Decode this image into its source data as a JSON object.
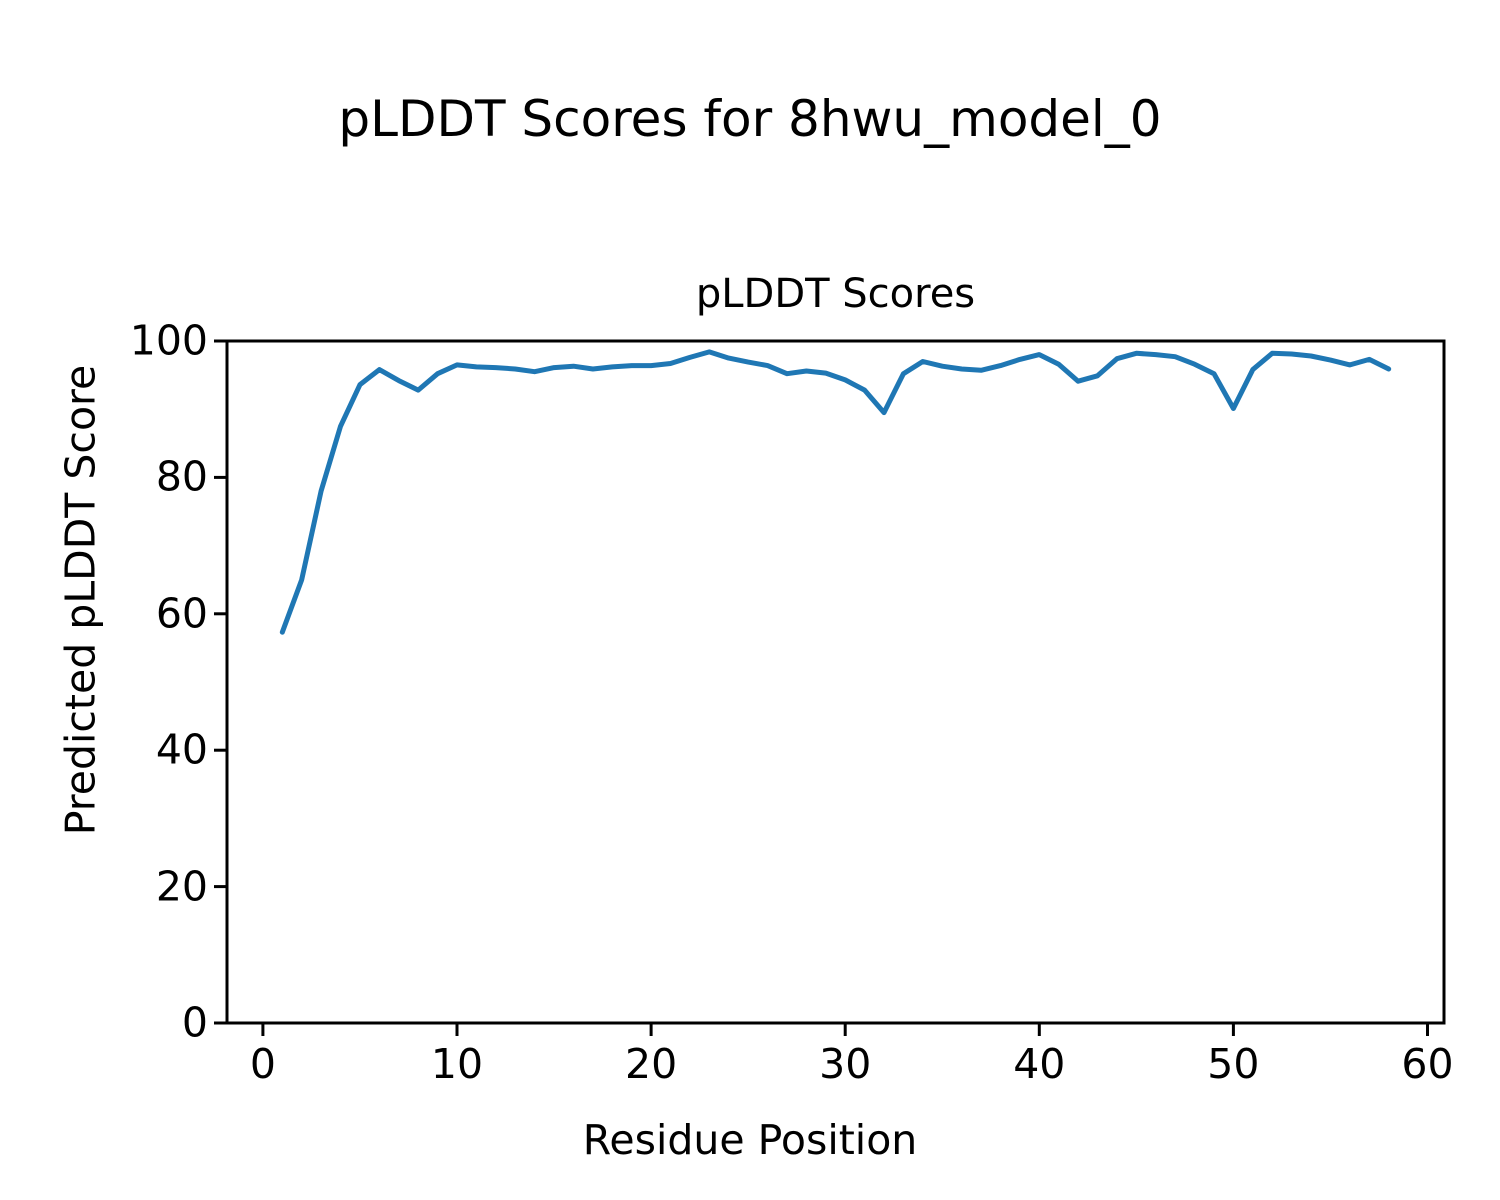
{
  "figure": {
    "suptitle": "pLDDT Scores for 8hwu_model_0",
    "background_color": "#ffffff",
    "text_color": "#000000"
  },
  "chart_data": {
    "type": "line",
    "title": "pLDDT Scores",
    "xlabel": "Residue Position",
    "ylabel": "Predicted pLDDT Score",
    "legend": null,
    "grid": false,
    "line_color": "#1f77b4",
    "line_width": 5,
    "spine_color": "#000000",
    "xlim": [
      -1.85,
      60.85
    ],
    "ylim": [
      0,
      100
    ],
    "xticks": [
      0,
      10,
      20,
      30,
      40,
      50,
      60
    ],
    "yticks": [
      0,
      20,
      40,
      60,
      80,
      100
    ],
    "x": [
      1,
      2,
      3,
      4,
      5,
      6,
      7,
      8,
      9,
      10,
      11,
      12,
      13,
      14,
      15,
      16,
      17,
      18,
      19,
      20,
      21,
      22,
      23,
      24,
      25,
      26,
      27,
      28,
      29,
      30,
      31,
      32,
      33,
      34,
      35,
      36,
      37,
      38,
      39,
      40,
      41,
      42,
      43,
      44,
      45,
      46,
      47,
      48,
      49,
      50,
      51,
      52,
      53,
      54,
      55,
      56,
      57,
      58
    ],
    "y": [
      57.3,
      65.0,
      78.0,
      87.5,
      93.6,
      95.8,
      94.2,
      92.8,
      95.2,
      96.5,
      96.2,
      96.1,
      95.9,
      95.5,
      96.1,
      96.3,
      95.9,
      96.2,
      96.4,
      96.4,
      96.7,
      97.6,
      98.4,
      97.5,
      96.9,
      96.4,
      95.2,
      95.6,
      95.3,
      94.3,
      92.8,
      89.5,
      95.2,
      97.0,
      96.3,
      95.9,
      95.7,
      96.4,
      97.3,
      98.0,
      96.6,
      94.1,
      94.9,
      97.4,
      98.2,
      98.0,
      97.7,
      96.6,
      95.2,
      90.1,
      95.8,
      98.2,
      98.1,
      97.8,
      97.2,
      96.5,
      97.3,
      95.9
    ]
  }
}
